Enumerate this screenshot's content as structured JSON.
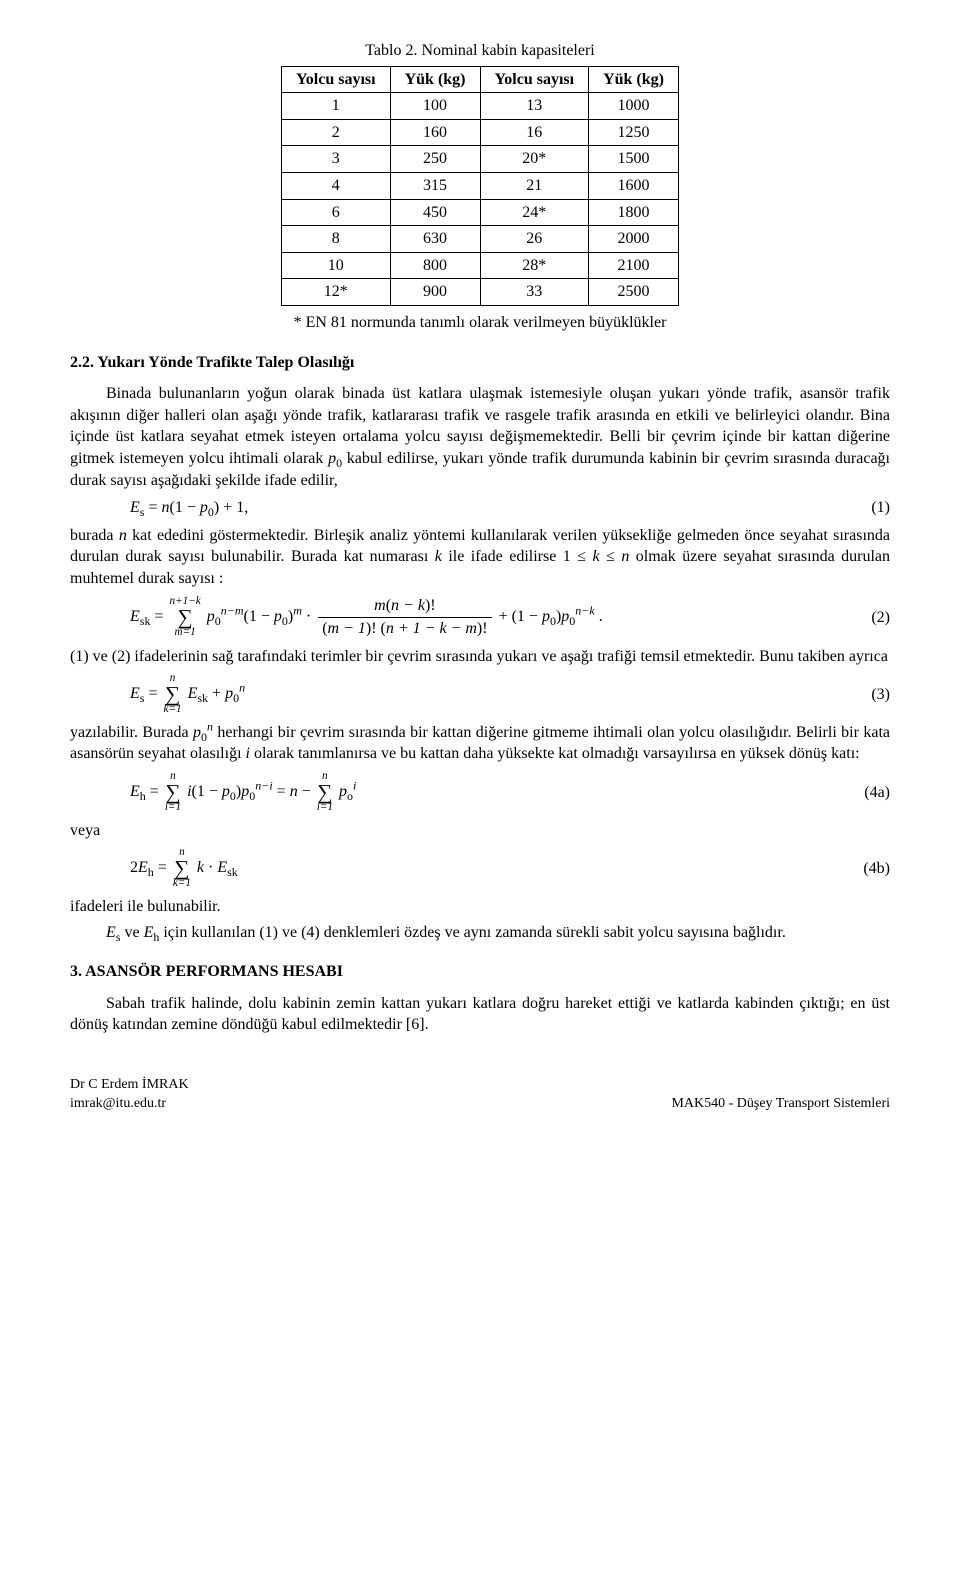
{
  "table": {
    "title": "Tablo 2. Nominal kabin kapasiteleri",
    "headers": [
      "Yolcu sayısı",
      "Yük (kg)",
      "Yolcu sayısı",
      "Yük (kg)"
    ],
    "rows": [
      [
        "1",
        "100",
        "13",
        "1000"
      ],
      [
        "2",
        "160",
        "16",
        "1250"
      ],
      [
        "3",
        "250",
        "20*",
        "1500"
      ],
      [
        "4",
        "315",
        "21",
        "1600"
      ],
      [
        "6",
        "450",
        "24*",
        "1800"
      ],
      [
        "8",
        "630",
        "26",
        "2000"
      ],
      [
        "10",
        "800",
        "28*",
        "2100"
      ],
      [
        "12*",
        "900",
        "33",
        "2500"
      ]
    ],
    "note": "* EN 81 normunda tanımlı olarak verilmeyen büyüklükler"
  },
  "section22": {
    "head": "2.2. Yukarı Yönde Trafikte Talep Olasılığı",
    "para1a": "Binada bulunanların yoğun olarak binada üst katlara ulaşmak istemesiyle oluşan yukarı yönde trafik, asansör trafik akışının diğer halleri olan aşağı yönde trafik, katlararası trafik ve rasgele trafik arasında en etkili ve belirleyici olandır. Bina içinde üst katlara seyahat etmek isteyen ortalama yolcu sayısı değişmemektedir. Belli bir çevrim içinde bir kattan diğerine gitmek istemeyen yolcu ihtimali olarak ",
    "para1b": " kabul edilirse, yukarı yönde trafik durumunda kabinin bir çevrim sırasında duracağı durak sayısı aşağıdaki şekilde ifade edilir,",
    "para2a": "burada ",
    "para2b": " kat ededini göstermektedir. Birleşik analiz yöntemi kullanılarak verilen yüksekliğe gelmeden önce seyahat sırasında durulan durak sayısı bulunabilir. Burada kat numarası ",
    "para2c": " ile ifade edilirse  1 ≤ ",
    "para2d": " ≤ ",
    "para2e": "  olmak üzere seyahat sırasında durulan muhtemel durak sayısı :",
    "para3": "(1) ve (2) ifadelerinin sağ tarafındaki terimler bir çevrim sırasında yukarı ve aşağı trafiği temsil etmektedir. Bunu takiben ayrıca",
    "para4a": "yazılabilir. Burada ",
    "para4b": " herhangi bir çevrim sırasında bir kattan diğerine gitmeme ihtimali olan yolcu olasılığıdır. Belirli bir kata asansörün seyahat olasılığı ",
    "para4c": " olarak tanımlanırsa ve bu kattan daha yüksekte kat olmadığı varsayılırsa en yüksek dönüş katı:",
    "veya": "veya",
    "para5": "ifadeleri ile bulunabilir.",
    "para6a": "",
    "para6b": " ve ",
    "para6c": " için kullanılan (1) ve (4) denklemleri özdeş ve aynı zamanda sürekli sabit yolcu sayısına bağlıdır."
  },
  "eqs": {
    "eq1_num": "(1)",
    "eq2_num": "(2)",
    "eq3_num": "(3)",
    "eq4a_num": "(4a)",
    "eq4b_num": "(4b)"
  },
  "section3": {
    "head": "3. ASANSÖR PERFORMANS HESABI",
    "para1": "Sabah trafik halinde, dolu kabinin zemin kattan yukarı katlara doğru hareket ettiği ve katlarda kabinden çıktığı; en üst dönüş katından zemine döndüğü kabul edilmektedir [6]."
  },
  "footer": {
    "left1": "Dr C Erdem İMRAK",
    "left2": "imrak@itu.edu.tr",
    "right": "MAK540 - Düşey Transport Sistemleri"
  },
  "symbols": {
    "p0": "p",
    "n": "n",
    "k": "k",
    "i": "i",
    "Es": "E",
    "Eh": "E"
  }
}
